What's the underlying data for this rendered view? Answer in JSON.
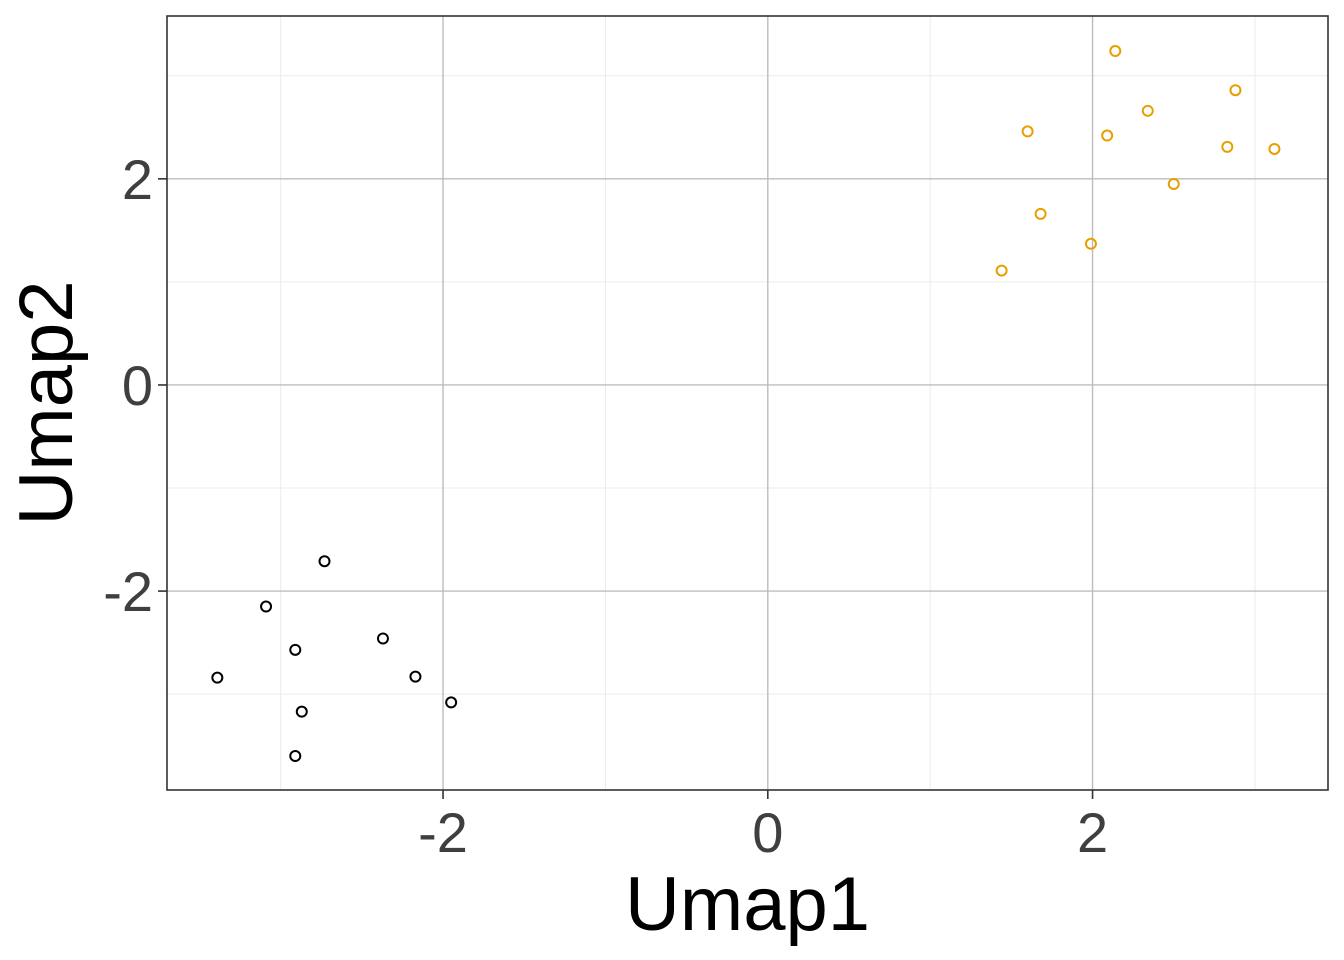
{
  "chart_data": {
    "type": "scatter",
    "title": "",
    "xlabel": "Umap1",
    "ylabel": "Umap2",
    "xlim": [
      -3.7,
      3.45
    ],
    "ylim": [
      -3.93,
      3.58
    ],
    "x_ticks": [
      -2,
      0,
      2
    ],
    "y_ticks": [
      -2,
      0,
      2
    ],
    "x_tick_labels": [
      "-2",
      "0",
      "2"
    ],
    "y_tick_labels": [
      "-2",
      "0",
      "2"
    ],
    "grid": true,
    "legend": "none",
    "marker": "open-circle",
    "colors": {
      "series_1": "#000000",
      "series_2": "#E69F00",
      "grid": "#bdbdbd",
      "panel_border": "#333333",
      "tick_text": "#3f3f3f",
      "axis_title": "#000000"
    },
    "series": [
      {
        "color": "#000000",
        "points": [
          {
            "x": -2.73,
            "y": -1.71
          },
          {
            "x": -3.09,
            "y": -2.15
          },
          {
            "x": -2.91,
            "y": -2.57
          },
          {
            "x": -2.37,
            "y": -2.46
          },
          {
            "x": -3.39,
            "y": -2.84
          },
          {
            "x": -2.17,
            "y": -2.83
          },
          {
            "x": -1.95,
            "y": -3.08
          },
          {
            "x": -2.87,
            "y": -3.17
          },
          {
            "x": -2.91,
            "y": -3.6
          }
        ]
      },
      {
        "color": "#E69F00",
        "points": [
          {
            "x": 2.14,
            "y": 3.24
          },
          {
            "x": 2.88,
            "y": 2.86
          },
          {
            "x": 2.34,
            "y": 2.66
          },
          {
            "x": 1.6,
            "y": 2.46
          },
          {
            "x": 2.09,
            "y": 2.42
          },
          {
            "x": 2.83,
            "y": 2.31
          },
          {
            "x": 3.12,
            "y": 2.29
          },
          {
            "x": 2.5,
            "y": 1.95
          },
          {
            "x": 1.68,
            "y": 1.66
          },
          {
            "x": 1.99,
            "y": 1.37
          },
          {
            "x": 1.44,
            "y": 1.11
          }
        ]
      }
    ]
  }
}
